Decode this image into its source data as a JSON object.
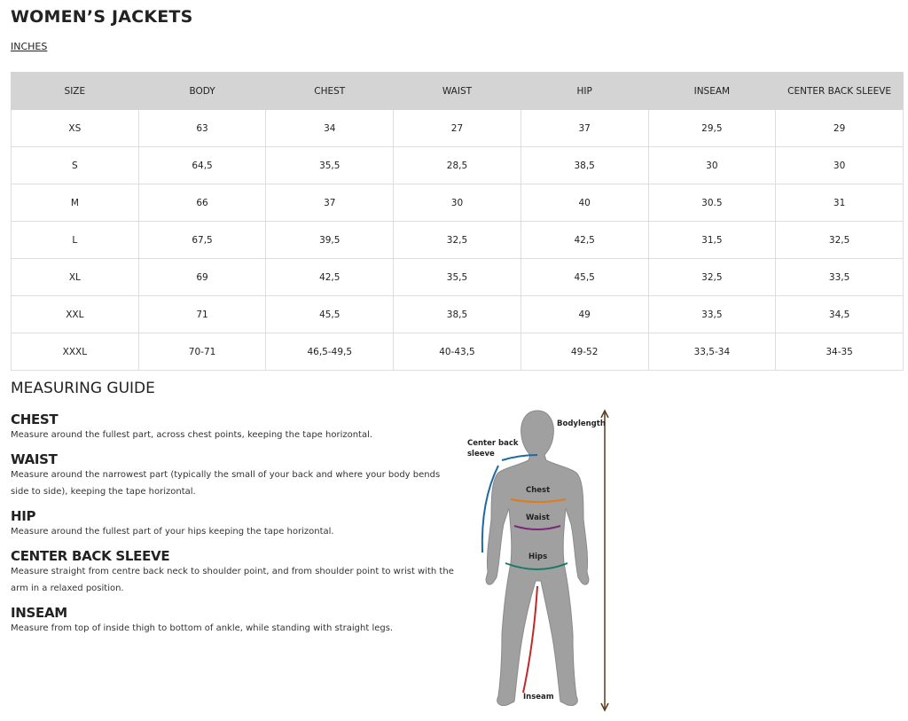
{
  "title": "WOMEN’S JACKETS",
  "units": "INCHES",
  "table": {
    "headers": [
      "SIZE",
      "BODY",
      "CHEST",
      "WAIST",
      "HIP",
      "INSEAM",
      "CENTER BACK SLEEVE"
    ],
    "rows": [
      [
        "XS",
        "63",
        "34",
        "27",
        "37",
        "29,5",
        "29"
      ],
      [
        "S",
        "64,5",
        "35,5",
        "28,5",
        "38,5",
        "30",
        "30"
      ],
      [
        "M",
        "66",
        "37",
        "30",
        "40",
        "30.5",
        "31"
      ],
      [
        "L",
        "67,5",
        "39,5",
        "32,5",
        "42,5",
        "31,5",
        "32,5"
      ],
      [
        "XL",
        "69",
        "42,5",
        "35,5",
        "45,5",
        "32,5",
        "33,5"
      ],
      [
        "XXL",
        "71",
        "45,5",
        "38,5",
        "49",
        "33,5",
        "34,5"
      ],
      [
        "XXXL",
        "70-71",
        "46,5-49,5",
        "40-43,5",
        "49-52",
        "33,5-34",
        "34-35"
      ]
    ]
  },
  "guide_title": "MEASURING GUIDE",
  "guide": [
    {
      "title": "CHEST",
      "text": "Measure around the fullest part, across chest points, keeping the tape horizontal."
    },
    {
      "title": "WAIST",
      "text": "Measure around the narrowest part (typically the small of your back and where your body bends side to side), keeping the tape horizontal."
    },
    {
      "title": "HIP",
      "text": "Measure around the fullest part of your hips keeping the tape horizontal."
    },
    {
      "title": "CENTER BACK SLEEVE",
      "text": "Measure straight from centre back neck to shoulder point, and from shoulder point to wrist with the arm in a relaxed position."
    },
    {
      "title": "INSEAM",
      "text": "Measure from top of inside thigh to bottom of ankle, while standing with straight legs."
    }
  ],
  "figure": {
    "labels": {
      "bodylength": "Bodylength",
      "cbs1": "Center back",
      "cbs2": "sleeve",
      "chest": "Chest",
      "waist": "Waist",
      "hips": "Hips",
      "inseam": "Inseam"
    },
    "colors": {
      "silhouette": "#a0a0a0",
      "bodylength": "#5a3a1a",
      "sleeve": "#1e6aa0",
      "chest": "#e07b1a",
      "waist": "#7a2a78",
      "hips": "#1a7a68",
      "inseam": "#c0282a"
    }
  }
}
